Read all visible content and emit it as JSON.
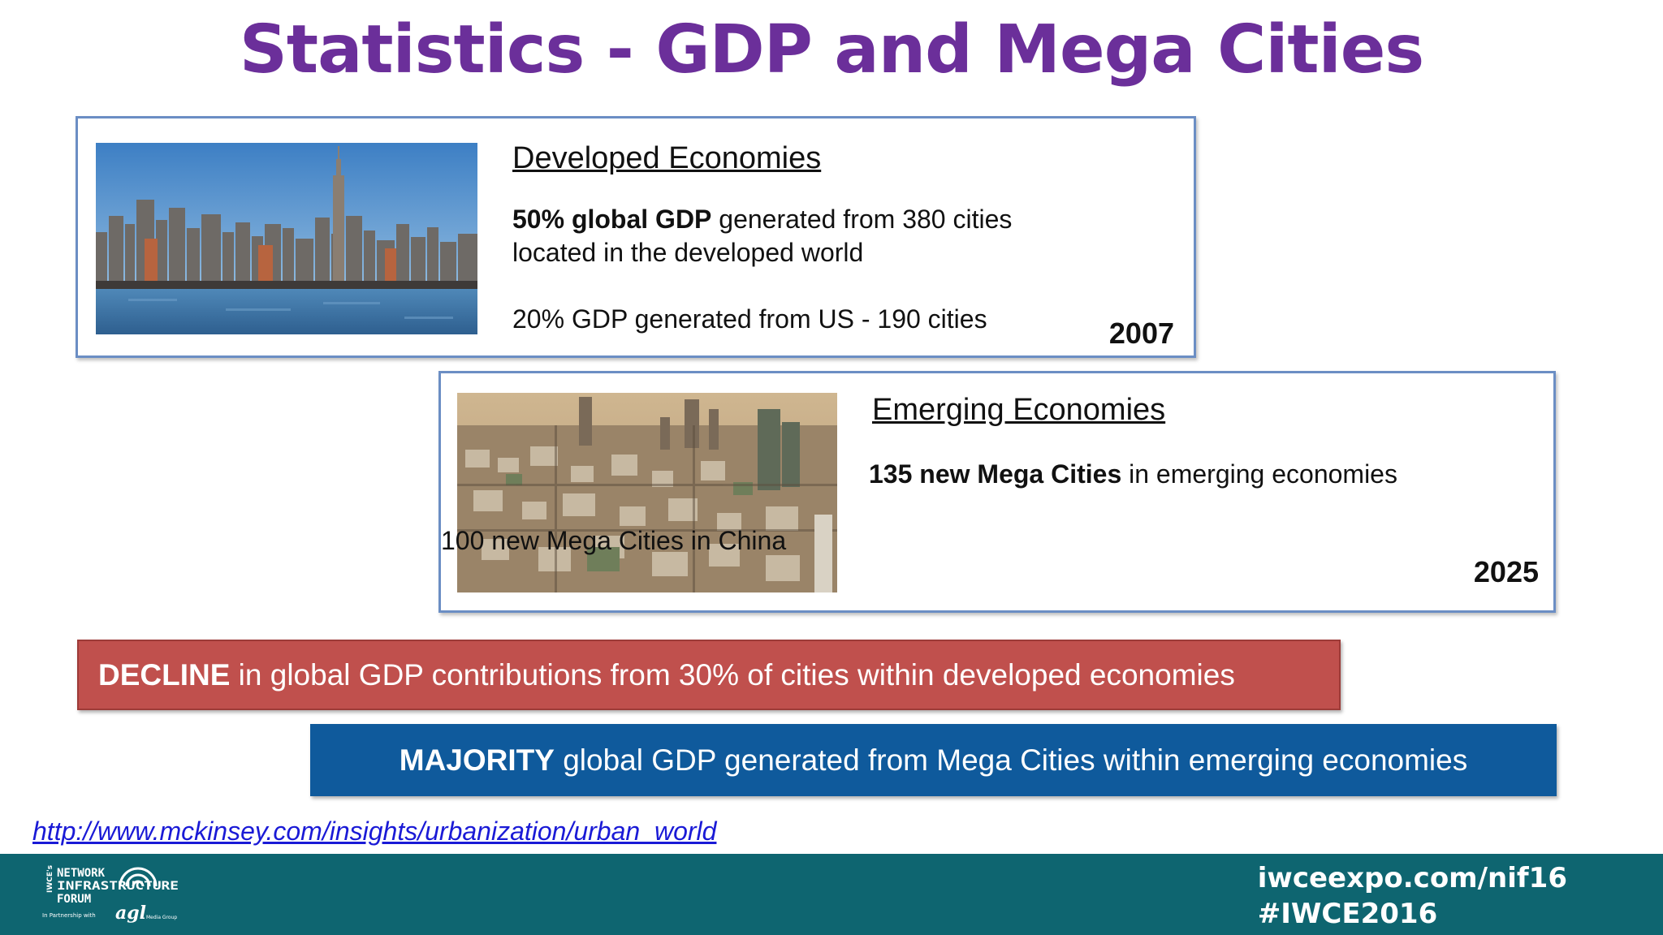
{
  "title": "Statistics - GDP and Mega Cities",
  "developed": {
    "heading": "Developed Economies",
    "line1_bold": "50% global GDP",
    "line1_rest": " generated from 380 cities",
    "line2": "located in the developed world",
    "line3": "20% GDP generated from US - 190 cities",
    "year": "2007"
  },
  "emerging": {
    "heading": "Emerging Economies",
    "line1_bold": "135 new Mega Cities",
    "line1_rest": " in emerging economies",
    "line2": "100 new Mega Cities in China",
    "year": "2025"
  },
  "banners": {
    "decline_bold": "DECLINE",
    "decline_rest": " in global GDP contributions from 30% of cities within developed economies",
    "majority_bold": "MAJORITY",
    "majority_rest": " global GDP generated from Mega Cities within emerging economies"
  },
  "source_link": "http://www.mckinsey.com/insights/urbanization/urban_world",
  "footer": {
    "url": "iwceexpo.com/nif16",
    "hashtag": "#IWCE2016",
    "logo_text": {
      "brand": "IWCE's",
      "line1": "NETWORK",
      "line2": "INFRASTRUCTURE",
      "line3": "FORUM",
      "partner": "In Partnership with",
      "partner_brand": "agl",
      "partner_suffix": "Media Group"
    }
  },
  "colors": {
    "title": "#6b2f9a",
    "box_border": "#6b8ec4",
    "decline_bg": "#c0504d",
    "majority_bg": "#0f5a9c",
    "footer_bg": "#0e6570",
    "link": "#1a1ad6"
  }
}
